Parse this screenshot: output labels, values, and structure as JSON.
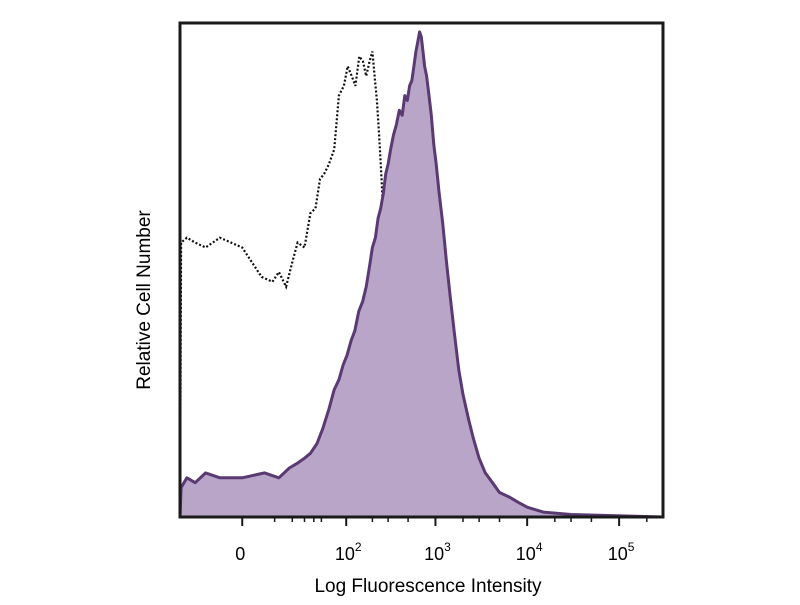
{
  "chart_data": {
    "type": "area",
    "xlabel": "Log Fluorescence Intensity",
    "ylabel": "Relative Cell Number",
    "x_scale": "biexponential",
    "xlim": [
      -30,
      300000
    ],
    "ylim": [
      0,
      100
    ],
    "grid": false,
    "legend": "none",
    "x_ticks": [
      {
        "value": 0,
        "base": "0",
        "exp": ""
      },
      {
        "value": 100,
        "base": "10",
        "exp": "2"
      },
      {
        "value": 1000,
        "base": "10",
        "exp": "3"
      },
      {
        "value": 10000,
        "base": "10",
        "exp": "4"
      },
      {
        "value": 100000,
        "base": "10",
        "exp": "5"
      }
    ],
    "series": [
      {
        "style": "dotted",
        "color": "#111111",
        "points": [
          [
            -30,
            0
          ],
          [
            -29,
            56
          ],
          [
            -24,
            57
          ],
          [
            -18,
            56
          ],
          [
            -12,
            55
          ],
          [
            -6,
            57
          ],
          [
            0,
            55
          ],
          [
            5,
            49
          ],
          [
            9,
            48
          ],
          [
            12,
            50
          ],
          [
            16,
            47
          ],
          [
            20,
            52
          ],
          [
            24,
            56
          ],
          [
            30,
            55
          ],
          [
            36,
            62
          ],
          [
            42,
            63
          ],
          [
            48,
            69
          ],
          [
            54,
            70
          ],
          [
            62,
            72
          ],
          [
            72,
            75
          ],
          [
            82,
            86
          ],
          [
            94,
            88
          ],
          [
            104,
            92
          ],
          [
            116,
            90
          ],
          [
            128,
            88
          ],
          [
            142,
            94
          ],
          [
            156,
            93
          ],
          [
            170,
            90
          ],
          [
            186,
            93
          ],
          [
            200,
            95
          ],
          [
            212,
            90
          ],
          [
            225,
            85
          ],
          [
            238,
            78
          ],
          [
            252,
            70
          ],
          [
            268,
            60
          ],
          [
            282,
            50
          ],
          [
            300,
            42
          ],
          [
            320,
            33
          ],
          [
            345,
            24
          ],
          [
            370,
            17
          ],
          [
            400,
            11
          ],
          [
            440,
            7
          ],
          [
            480,
            5
          ],
          [
            540,
            3
          ],
          [
            620,
            2
          ],
          [
            800,
            1
          ],
          [
            1200,
            1
          ],
          [
            3000,
            0.3
          ],
          [
            300000,
            0
          ]
        ]
      },
      {
        "style": "filled",
        "color": "#5a3a72",
        "fill": "#b8a5c8",
        "points": [
          [
            -30,
            0
          ],
          [
            -29,
            6
          ],
          [
            -24,
            8
          ],
          [
            -18,
            7
          ],
          [
            -12,
            9
          ],
          [
            -6,
            8
          ],
          [
            0,
            8
          ],
          [
            6,
            9
          ],
          [
            12,
            8
          ],
          [
            18,
            10
          ],
          [
            24,
            11
          ],
          [
            30,
            12
          ],
          [
            36,
            13
          ],
          [
            44,
            15
          ],
          [
            52,
            18
          ],
          [
            62,
            22
          ],
          [
            72,
            26
          ],
          [
            82,
            28
          ],
          [
            92,
            31
          ],
          [
            102,
            33
          ],
          [
            114,
            36
          ],
          [
            126,
            38
          ],
          [
            140,
            42
          ],
          [
            155,
            44
          ],
          [
            170,
            47
          ],
          [
            185,
            51
          ],
          [
            200,
            55
          ],
          [
            216,
            57
          ],
          [
            232,
            61
          ],
          [
            248,
            63
          ],
          [
            265,
            66
          ],
          [
            282,
            70
          ],
          [
            300,
            72
          ],
          [
            320,
            75
          ],
          [
            345,
            78
          ],
          [
            370,
            80
          ],
          [
            400,
            83
          ],
          [
            430,
            82
          ],
          [
            460,
            86
          ],
          [
            490,
            85
          ],
          [
            520,
            88
          ],
          [
            550,
            89
          ],
          [
            580,
            92
          ],
          [
            610,
            95
          ],
          [
            640,
            97
          ],
          [
            670,
            99
          ],
          [
            700,
            98
          ],
          [
            730,
            95
          ],
          [
            760,
            92
          ],
          [
            800,
            90
          ],
          [
            850,
            86
          ],
          [
            900,
            82
          ],
          [
            960,
            76
          ],
          [
            1020,
            72
          ],
          [
            1100,
            66
          ],
          [
            1200,
            60
          ],
          [
            1320,
            52
          ],
          [
            1450,
            45
          ],
          [
            1600,
            38
          ],
          [
            1800,
            30
          ],
          [
            2000,
            25
          ],
          [
            2300,
            20
          ],
          [
            2600,
            16
          ],
          [
            3000,
            12
          ],
          [
            3500,
            9
          ],
          [
            4200,
            7
          ],
          [
            5000,
            5
          ],
          [
            6500,
            4
          ],
          [
            8000,
            3
          ],
          [
            10000,
            2
          ],
          [
            15000,
            1
          ],
          [
            30000,
            0.5
          ],
          [
            300000,
            0
          ]
        ]
      }
    ]
  }
}
